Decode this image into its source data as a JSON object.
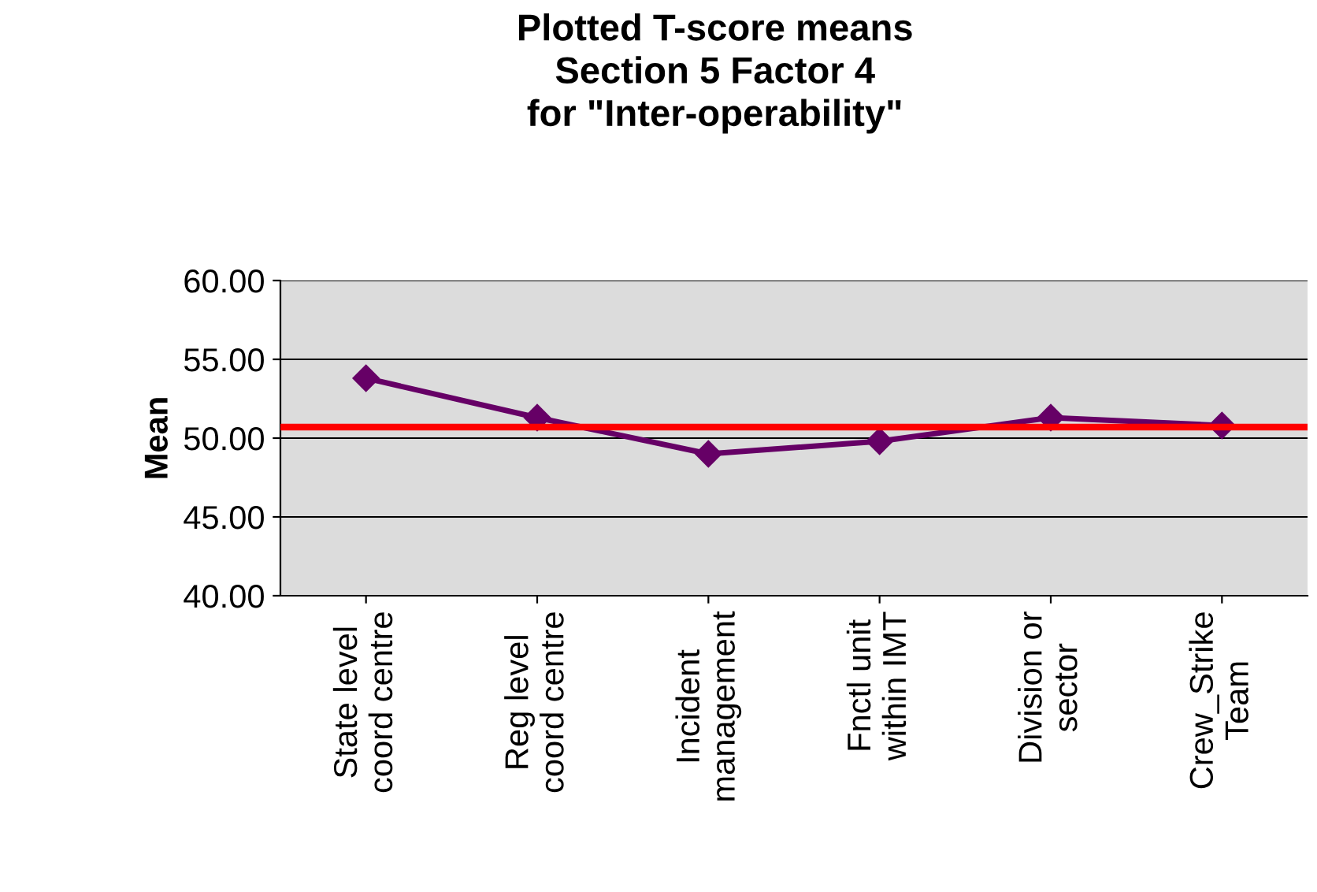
{
  "chart_data": {
    "type": "line",
    "title": "Plotted T-score means\nSection 5 Factor 4\nfor \"Inter-operability\"",
    "ylabel": "Mean",
    "categories": [
      "State level\ncoord centre",
      "Reg level\ncoord centre",
      "Incident\nmanagement",
      "Fnctl unit\nwithin IMT",
      "Division or\nsector",
      "Crew_Strike\nTeam"
    ],
    "series": [
      {
        "color": "#660066",
        "values": [
          53.8,
          51.3,
          49.0,
          49.8,
          51.3,
          50.8
        ]
      }
    ],
    "ylim": [
      40,
      60
    ],
    "yticks": [
      {
        "value": 40,
        "label": "40.00"
      },
      {
        "value": 45,
        "label": "45.00"
      },
      {
        "value": 50,
        "label": "50.00"
      },
      {
        "value": 55,
        "label": "55.00"
      },
      {
        "value": 60,
        "label": "60.00"
      }
    ],
    "ref_lines": [
      {
        "axis": "y",
        "value": 50.7,
        "color": "#ff0000"
      }
    ],
    "grid": "y",
    "marker": "diamond",
    "legend": false
  }
}
